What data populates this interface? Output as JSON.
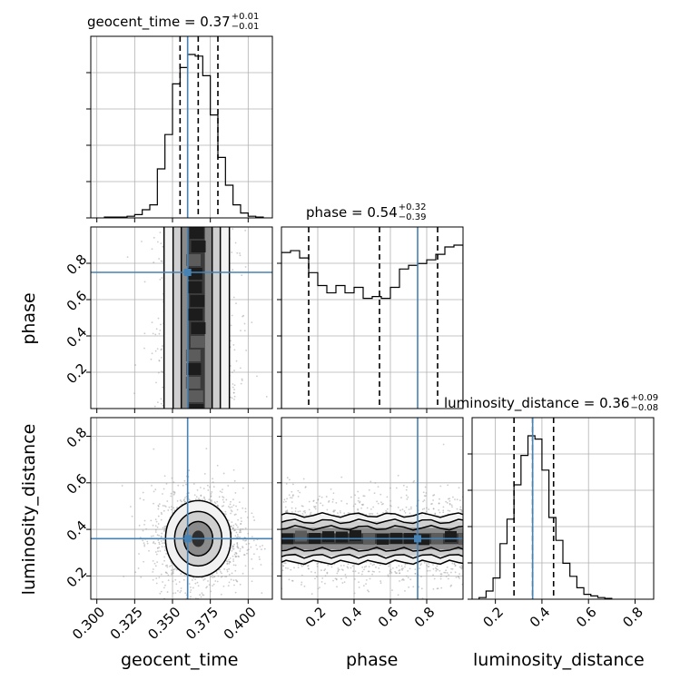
{
  "chart_data": {
    "type": "corner",
    "parameters": [
      "geocent_time",
      "phase",
      "luminosity_distance"
    ],
    "truths": {
      "geocent_time": 0.36,
      "phase": 0.75,
      "luminosity_distance": 0.36
    },
    "quantile_lines": {
      "geocent_time": [
        0.355,
        0.367,
        0.38
      ],
      "phase": [
        0.15,
        0.54,
        0.86
      ],
      "luminosity_distance": [
        0.28,
        0.36,
        0.45
      ]
    },
    "titles": {
      "geocent_time": {
        "name": "geocent_time",
        "value": "0.37",
        "plus": "+0.01",
        "minus": "−0.01"
      },
      "phase": {
        "name": "phase",
        "value": "0.54",
        "plus": "+0.32",
        "minus": "−0.39"
      },
      "luminosity_distance": {
        "name": "luminosity_distance",
        "value": "0.36",
        "plus": "+0.09",
        "minus": "−0.08"
      }
    },
    "axis_labels": {
      "geocent_time": "geocent_time",
      "phase": "phase",
      "luminosity_distance": "luminosity_distance"
    },
    "ranges": {
      "geocent_time": [
        0.296,
        0.416
      ],
      "phase": [
        0.0,
        1.0
      ],
      "luminosity_distance": [
        0.1,
        0.88
      ]
    },
    "ticks": {
      "geocent_time": [
        "0.300",
        "0.325",
        "0.350",
        "0.375",
        "0.400"
      ],
      "phase": [
        "0.2",
        "0.4",
        "0.6",
        "0.8"
      ],
      "luminosity_distance": [
        "0.2",
        "0.4",
        "0.6",
        "0.8"
      ]
    },
    "hist_1d": {
      "geocent_time": {
        "bin_edges": [
          0.305,
          0.31,
          0.315,
          0.32,
          0.325,
          0.33,
          0.335,
          0.34,
          0.345,
          0.35,
          0.355,
          0.36,
          0.365,
          0.37,
          0.375,
          0.38,
          0.385,
          0.39,
          0.395,
          0.4,
          0.405,
          0.41
        ],
        "counts": [
          0.005,
          0.005,
          0.005,
          0.01,
          0.02,
          0.05,
          0.08,
          0.3,
          0.51,
          0.82,
          0.92,
          1.0,
          0.99,
          0.87,
          0.63,
          0.37,
          0.2,
          0.08,
          0.03,
          0.01,
          0.005
        ]
      },
      "phase": {
        "bin_edges": [
          0.0,
          0.05,
          0.1,
          0.15,
          0.2,
          0.25,
          0.3,
          0.35,
          0.4,
          0.45,
          0.5,
          0.55,
          0.6,
          0.65,
          0.7,
          0.75,
          0.8,
          0.85,
          0.9,
          0.95,
          1.0
        ],
        "counts": [
          0.85,
          0.86,
          0.82,
          0.74,
          0.67,
          0.63,
          0.67,
          0.63,
          0.66,
          0.6,
          0.61,
          0.6,
          0.66,
          0.76,
          0.78,
          0.79,
          0.81,
          0.84,
          0.88,
          0.89
        ]
      },
      "luminosity_distance": {
        "bin_edges": [
          0.13,
          0.16,
          0.19,
          0.22,
          0.25,
          0.28,
          0.31,
          0.34,
          0.37,
          0.4,
          0.43,
          0.46,
          0.49,
          0.52,
          0.55,
          0.58,
          0.61,
          0.64,
          0.67,
          0.7
        ],
        "counts": [
          0.01,
          0.05,
          0.13,
          0.34,
          0.49,
          0.7,
          0.88,
          1.0,
          0.98,
          0.79,
          0.5,
          0.36,
          0.22,
          0.14,
          0.07,
          0.03,
          0.02,
          0.01,
          0.005
        ]
      }
    },
    "hist_2d": {
      "phase_vs_geocent_time": {
        "center": [
          0.366,
          0.5
        ],
        "spread": [
          0.009,
          0.5
        ]
      },
      "luminosity_distance_vs_geocent_time": {
        "center": [
          0.367,
          0.36
        ],
        "spread": [
          0.011,
          0.08
        ]
      },
      "luminosity_distance_vs_phase": {
        "center": [
          0.5,
          0.36
        ],
        "spread": [
          0.5,
          0.07
        ]
      }
    },
    "grid": true,
    "colors": {
      "truth": "#4682b4",
      "hist": "#000000",
      "points": "#9a9a9a",
      "grid": "#b0b0b0"
    }
  }
}
